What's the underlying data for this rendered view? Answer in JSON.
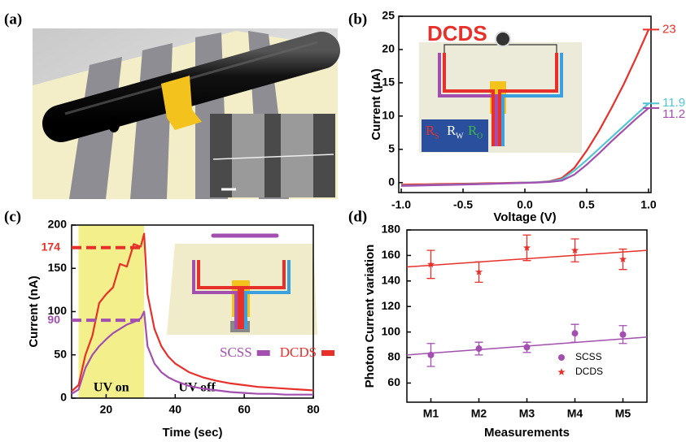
{
  "chart_data": [
    {
      "type": "illustration",
      "panel_label": "(a)"
    },
    {
      "type": "line",
      "panel_label": "(b)",
      "title": "DCDS",
      "inset_labels": [
        {
          "main": "R",
          "sub": "S",
          "color": "#e8302a"
        },
        {
          "main": "R",
          "sub": "W",
          "color": "#ffffff"
        },
        {
          "main": "R",
          "sub": "O",
          "color": "#3fb54a"
        }
      ],
      "x": [
        -1,
        -0.9,
        -0.8,
        -0.7,
        -0.6,
        -0.5,
        -0.4,
        -0.3,
        -0.2,
        -0.1,
        0,
        0.1,
        0.2,
        0.3,
        0.4,
        0.5,
        0.6,
        0.7,
        0.8,
        0.9,
        1
      ],
      "series": [
        {
          "color": "#e8302a",
          "values": [
            -0.3,
            -0.28,
            -0.25,
            -0.22,
            -0.2,
            -0.17,
            -0.14,
            -0.1,
            -0.07,
            -0.04,
            0,
            0.05,
            0.2,
            0.7,
            2.2,
            4.8,
            7.8,
            11.2,
            14.8,
            18.8,
            23
          ]
        },
        {
          "color": "#4fc6d6",
          "values": [
            -0.45,
            -0.42,
            -0.38,
            -0.34,
            -0.3,
            -0.26,
            -0.22,
            -0.17,
            -0.12,
            -0.07,
            -0.02,
            0.04,
            0.15,
            0.5,
            1.8,
            3.4,
            5.1,
            6.8,
            8.5,
            10.2,
            11.9
          ]
        },
        {
          "color": "#a24fb0",
          "values": [
            -0.5,
            -0.46,
            -0.42,
            -0.38,
            -0.34,
            -0.3,
            -0.25,
            -0.2,
            -0.15,
            -0.1,
            -0.05,
            0.02,
            0.1,
            0.3,
            1.2,
            2.7,
            4.4,
            6.2,
            7.9,
            9.6,
            11.2
          ]
        }
      ],
      "end_labels": true,
      "xlim": [
        -1.02,
        1.02
      ],
      "xticks": [
        {
          "value": -1,
          "label": "-1.0"
        },
        -0.5,
        {
          "value": 0,
          "label": "0.0"
        },
        0.5,
        {
          "value": 1,
          "label": "1.0"
        }
      ],
      "ylim": [
        -1.5,
        25
      ],
      "yticks": [
        0,
        5,
        10,
        15,
        20,
        25
      ],
      "xlabel": "Voltage (V)",
      "ylabel": "Current (μA)"
    },
    {
      "type": "line",
      "panel_label": "(c)",
      "x": [
        10,
        12,
        14,
        16,
        18,
        20,
        22,
        24,
        26,
        28,
        30,
        31,
        32,
        34,
        36,
        38,
        40,
        44,
        48,
        52,
        56,
        60,
        64,
        68,
        72,
        76,
        80
      ],
      "series": [
        {
          "name": "SCSS",
          "color": "#a24fb0",
          "values": [
            5,
            10,
            35,
            50,
            60,
            68,
            75,
            80,
            85,
            88,
            92,
            100,
            60,
            40,
            30,
            24,
            20,
            14,
            11,
            9,
            7,
            6,
            5,
            5,
            4,
            4,
            4
          ]
        },
        {
          "name": "DCDS",
          "color": "#e8302a",
          "values": [
            8,
            15,
            50,
            72,
            110,
            120,
            128,
            155,
            152,
            178,
            175,
            190,
            120,
            80,
            60,
            48,
            40,
            30,
            24,
            20,
            17,
            15,
            13,
            12,
            11,
            10,
            9
          ]
        }
      ],
      "reference_lines": [
        {
          "value": 174,
          "color": "#e8302a"
        },
        {
          "value": 90,
          "color": "#a24fb0"
        }
      ],
      "shade": {
        "x": [
          12,
          31
        ],
        "label": "UV on",
        "color": "#f3f08c"
      },
      "annotation": "UV off",
      "xlim": [
        10,
        80
      ],
      "xticks": [
        20,
        40,
        60,
        80
      ],
      "ylim": [
        0,
        200
      ],
      "yticks": [
        0,
        50,
        100,
        150,
        200
      ],
      "xlabel": "Time (sec)",
      "ylabel": "Current (nA)"
    },
    {
      "type": "scatter",
      "panel_label": "(d)",
      "categories": [
        "M1",
        "M2",
        "M3",
        "M4",
        "M5"
      ],
      "series": [
        {
          "name": "SCSS",
          "color": "#a24fb0",
          "marker": "circle",
          "values": [
            82,
            87,
            88,
            99,
            98
          ],
          "errors": [
            9,
            5,
            4,
            7,
            7
          ],
          "fit": [
            82,
            96
          ]
        },
        {
          "name": "DCDS",
          "color": "#e8302a",
          "marker": "star",
          "values": [
            153,
            147,
            166,
            164,
            157
          ],
          "errors": [
            11,
            8,
            10,
            9,
            8
          ],
          "fit": [
            151,
            164
          ]
        }
      ],
      "ylim": [
        45,
        180
      ],
      "yticks": [
        60,
        80,
        100,
        120,
        140,
        160,
        180
      ],
      "xlabel": "Measurements",
      "ylabel": "Photon Current variation"
    }
  ]
}
